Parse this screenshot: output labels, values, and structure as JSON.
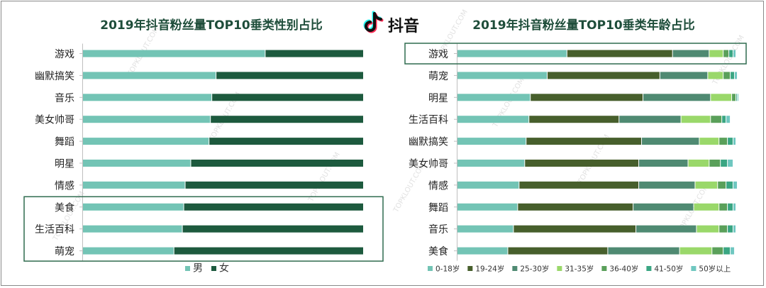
{
  "brand": {
    "name": "抖音"
  },
  "colors": {
    "male": "#73c4b5",
    "female": "#1d5a3e",
    "highlight_border": "#2f6b4f",
    "age": [
      "#73c4b5",
      "#475f2c",
      "#4f8a72",
      "#9ad86a",
      "#5aa05a",
      "#3aa683",
      "#6fc7c0"
    ]
  },
  "watermark": "TOPKLOUT.COM",
  "chart_data": [
    {
      "type": "bar",
      "stacked": true,
      "orientation": "horizontal",
      "title": "2019年抖音粉丝量TOP10垂类性别占比",
      "categories": [
        "游戏",
        "幽默搞笑",
        "音乐",
        "美女帅哥",
        "舞蹈",
        "明星",
        "情感",
        "美食",
        "生活百科",
        "萌宠"
      ],
      "series": [
        {
          "name": "男",
          "values": [
            65,
            47.5,
            46,
            45.5,
            45,
            38.5,
            36.5,
            36,
            35.5,
            32.5
          ]
        },
        {
          "name": "女",
          "values": [
            35,
            52.5,
            54,
            54.5,
            55,
            61.5,
            63.5,
            64,
            64.5,
            67.5
          ]
        }
      ],
      "xlim": [
        0,
        100
      ],
      "legend_position": "bottom",
      "highlighted": [
        "美食",
        "生活百科",
        "萌宠"
      ]
    },
    {
      "type": "bar",
      "stacked": true,
      "orientation": "horizontal",
      "title": "2019年抖音粉丝量TOP10垂类年龄占比",
      "categories": [
        "游戏",
        "萌宠",
        "明星",
        "生活百科",
        "幽默搞笑",
        "美女帅哥",
        "情感",
        "舞蹈",
        "音乐",
        "美食"
      ],
      "series": [
        {
          "name": "0-18岁",
          "values": [
            39,
            32,
            26,
            25.5,
            24.5,
            24,
            22,
            21.5,
            20,
            18
          ]
        },
        {
          "name": "19-24岁",
          "values": [
            37.5,
            40,
            40,
            32,
            41,
            40.5,
            42.5,
            41,
            43.5,
            35.5
          ]
        },
        {
          "name": "25-30岁",
          "values": [
            13,
            17,
            24,
            22,
            20.5,
            17.5,
            20,
            21.5,
            21.5,
            25.5
          ]
        },
        {
          "name": "31-35岁",
          "values": [
            5,
            5.5,
            7.5,
            10.5,
            7,
            7.5,
            8,
            9,
            8,
            11.5
          ]
        },
        {
          "name": "36-40岁",
          "values": [
            2,
            2.5,
            1.5,
            4,
            3,
            4,
            3,
            3,
            3,
            4
          ]
        },
        {
          "name": "41-50岁",
          "values": [
            1.5,
            1.5,
            0.5,
            1.5,
            2,
            2.5,
            2.5,
            2,
            2,
            2.5
          ]
        },
        {
          "name": "50岁以上",
          "values": [
            1,
            1,
            0.5,
            1.5,
            1,
            2,
            1.5,
            1,
            1,
            1.5
          ]
        }
      ],
      "xlim": [
        0,
        100
      ],
      "legend_position": "bottom",
      "highlighted": [
        "游戏"
      ]
    }
  ]
}
